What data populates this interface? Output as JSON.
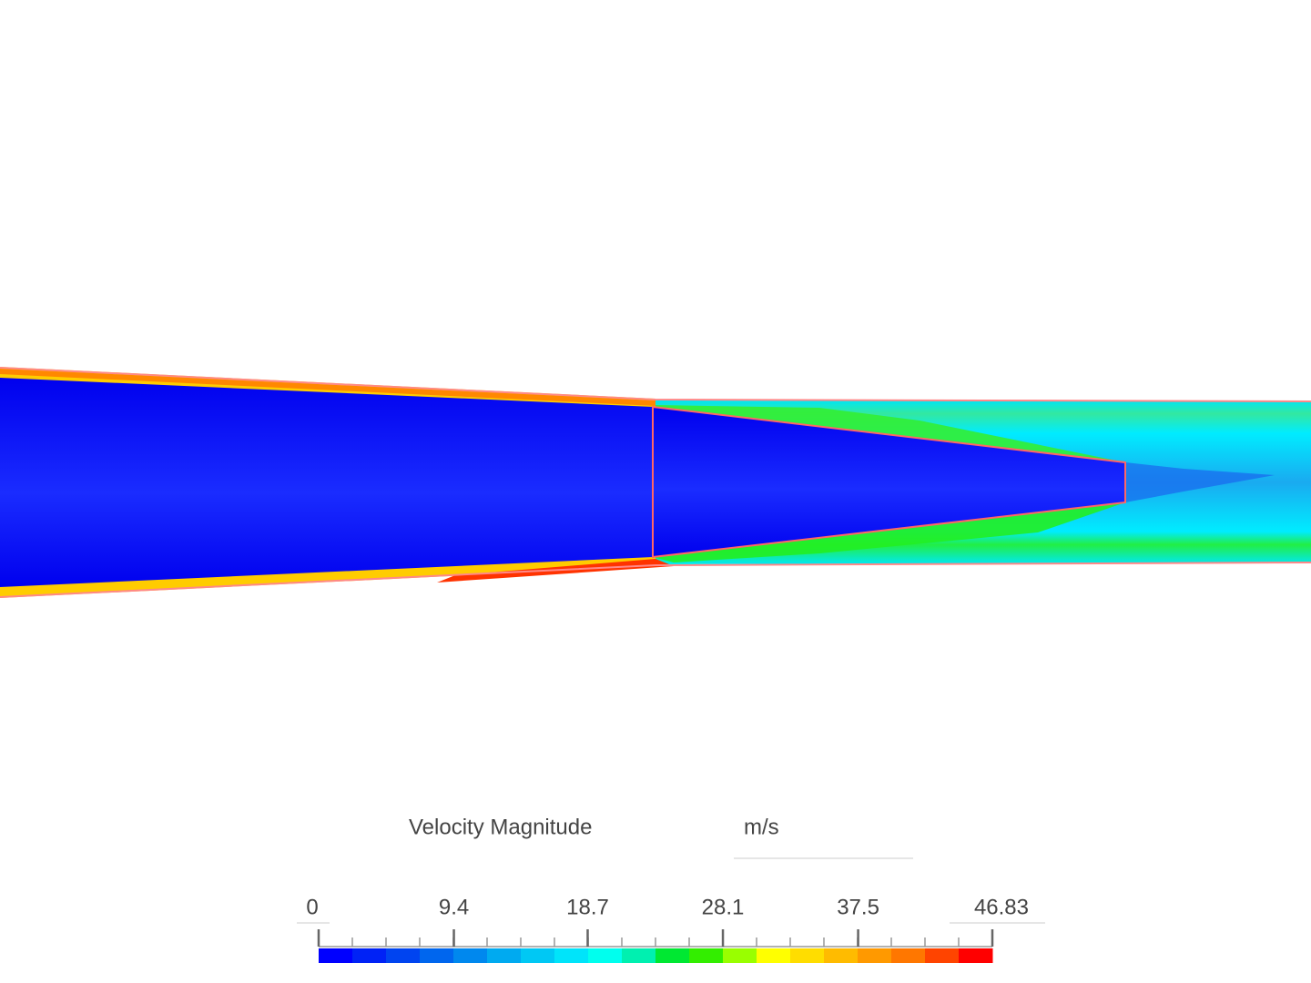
{
  "colorbar": {
    "title": "Velocity Magnitude",
    "unit": "m/s",
    "range": [
      0,
      46.83
    ],
    "ticks": [
      0,
      9.4,
      18.7,
      28.1,
      37.5,
      46.83
    ],
    "colors": [
      "#0000ff",
      "#0022f6",
      "#0044f0",
      "#0066ee",
      "#0088ee",
      "#00aaf0",
      "#00c8f4",
      "#00e4fa",
      "#00ffee",
      "#00f0b0",
      "#00e832",
      "#33ee00",
      "#99ff00",
      "#ffff00",
      "#ffdd00",
      "#ffbb00",
      "#ff9900",
      "#ff7700",
      "#ff4400",
      "#ff0000"
    ]
  }
}
